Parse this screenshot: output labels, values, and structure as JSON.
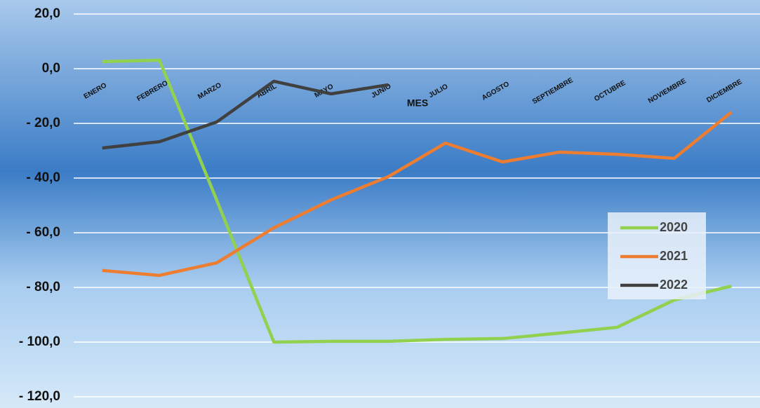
{
  "chart_data": {
    "type": "line",
    "x_label": "MES",
    "categories": [
      "ENERO",
      "FEBRERO",
      "MARZO",
      "ABRIL",
      "MAYO",
      "JUNIO",
      "JULIO",
      "AGOSTO",
      "SEPTIEMBRE",
      "OCTUBRE",
      "NOVIEMBRE",
      "DICIEMBRE"
    ],
    "series": [
      {
        "name": "2020",
        "color": "#92d050",
        "values": [
          2.6,
          3.1,
          -48,
          -100,
          -99.7,
          -99.7,
          -99,
          -98.7,
          -96.7,
          -94.6,
          -84.6,
          -79.5
        ]
      },
      {
        "name": "2021",
        "color": "#ed7d31",
        "values": [
          -73.8,
          -75.6,
          -71,
          -58.2,
          -48,
          -39.5,
          -27.2,
          -34.1,
          -30.5,
          -31.3,
          -32.8,
          -15.9
        ]
      },
      {
        "name": "2022",
        "color": "#404040",
        "values": [
          -29,
          -26.7,
          -19.5,
          -4.6,
          -9.2,
          -5.9,
          null,
          null,
          null,
          null,
          null,
          null
        ]
      }
    ],
    "ylim": [
      -120,
      20
    ],
    "yticks": [
      {
        "value": -120,
        "label": "- 120,0"
      },
      {
        "value": -100,
        "label": "- 100,0"
      },
      {
        "value": -80,
        "label": "- 80,0"
      },
      {
        "value": -60,
        "label": "- 60,0"
      },
      {
        "value": -40,
        "label": "- 40,0"
      },
      {
        "value": -20,
        "label": "- 20,0"
      },
      {
        "value": 0,
        "label": "0,0"
      },
      {
        "value": 20,
        "label": "20,0"
      }
    ],
    "grid": true
  }
}
